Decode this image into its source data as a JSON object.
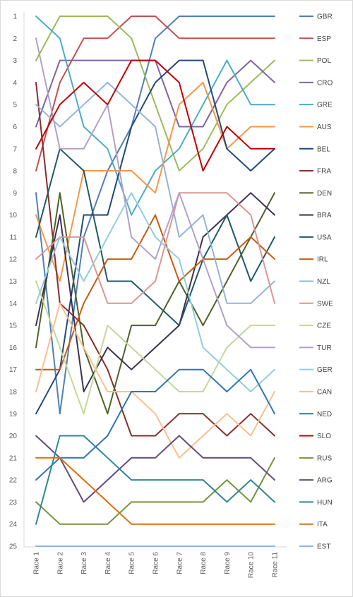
{
  "chart_data": {
    "type": "line",
    "title": "",
    "xlabel": "",
    "ylabel": "",
    "x": [
      "Race 1",
      "Race 2",
      "Race 3",
      "Race 4",
      "Race 5",
      "Race 6",
      "Race 7",
      "Race 8",
      "Race 9",
      "Race 10",
      "Race 11"
    ],
    "yticks": [
      1,
      2,
      3,
      4,
      5,
      6,
      7,
      8,
      9,
      10,
      11,
      12,
      13,
      14,
      15,
      16,
      17,
      18,
      19,
      20,
      21,
      22,
      23,
      24,
      25
    ],
    "ylim": [
      1,
      25
    ],
    "y_reversed": true,
    "grid": false,
    "legend_position": "right",
    "series": [
      {
        "name": "GBR",
        "color": "#4e7fb8",
        "values": [
          9,
          19,
          11,
          8,
          6,
          2,
          1,
          1,
          1,
          1,
          1
        ]
      },
      {
        "name": "ESP",
        "color": "#c0504d",
        "values": [
          8,
          4,
          2,
          2,
          1,
          1,
          2,
          2,
          2,
          2,
          2
        ]
      },
      {
        "name": "POL",
        "color": "#9bbb59",
        "values": [
          3,
          1,
          1,
          1,
          2,
          5,
          8,
          7,
          5,
          4,
          3
        ]
      },
      {
        "name": "CRO",
        "color": "#8064a2",
        "values": [
          6,
          3,
          3,
          3,
          3,
          3,
          6,
          6,
          4,
          3,
          4
        ]
      },
      {
        "name": "GRE",
        "color": "#4bacc6",
        "values": [
          1,
          2,
          6,
          7,
          10,
          8,
          7,
          5,
          3,
          5,
          5
        ]
      },
      {
        "name": "AUS",
        "color": "#f79646",
        "values": [
          10,
          13,
          8,
          8,
          8,
          9,
          5,
          4,
          7,
          6,
          6
        ]
      },
      {
        "name": "BEL",
        "color": "#1f497d",
        "values": [
          19,
          17,
          10,
          10,
          6,
          4,
          3,
          3,
          7,
          8,
          7
        ]
      },
      {
        "name": "FRA",
        "color": "#8b2c2c",
        "values": [
          4,
          14,
          15,
          17,
          20,
          20,
          19,
          19,
          20,
          19,
          20
        ]
      },
      {
        "name": "DEN",
        "color": "#4f6228",
        "values": [
          16,
          9,
          16,
          19,
          15,
          15,
          13,
          15,
          13,
          11,
          9
        ]
      },
      {
        "name": "BRA",
        "color": "#3e3151",
        "values": [
          15,
          10,
          18,
          16,
          17,
          16,
          15,
          11,
          10,
          9,
          10
        ]
      },
      {
        "name": "USA",
        "color": "#215968",
        "values": [
          11,
          7,
          8,
          13,
          13,
          14,
          15,
          12,
          10,
          13,
          11
        ]
      },
      {
        "name": "IRL",
        "color": "#c65911",
        "values": [
          17,
          17,
          14,
          12,
          12,
          10,
          13,
          12,
          12,
          11,
          12
        ]
      },
      {
        "name": "NZL",
        "color": "#95b3d7",
        "values": [
          5,
          6,
          5,
          4,
          5,
          6,
          11,
          10,
          14,
          14,
          13
        ]
      },
      {
        "name": "SWE",
        "color": "#da9694",
        "values": [
          12,
          11,
          11,
          14,
          14,
          13,
          9,
          9,
          9,
          10,
          14
        ]
      },
      {
        "name": "CZE",
        "color": "#c4d79b",
        "values": [
          13,
          16,
          19,
          15,
          16,
          17,
          18,
          18,
          16,
          15,
          15
        ]
      },
      {
        "name": "TUR",
        "color": "#b1a0c7",
        "values": [
          2,
          7,
          7,
          5,
          11,
          12,
          9,
          12,
          15,
          16,
          16
        ]
      },
      {
        "name": "GER",
        "color": "#92cddc",
        "values": [
          14,
          11,
          13,
          11,
          9,
          11,
          12,
          16,
          17,
          18,
          17
        ]
      },
      {
        "name": "CAN",
        "color": "#fabf8f",
        "values": [
          18,
          14,
          16,
          18,
          18,
          19,
          21,
          20,
          19,
          20,
          18
        ]
      },
      {
        "name": "NED",
        "color": "#2e75b6",
        "values": [
          22,
          21,
          21,
          20,
          18,
          18,
          17,
          17,
          18,
          17,
          19
        ]
      },
      {
        "name": "SLO",
        "color": "#c00000",
        "values": [
          7,
          5,
          4,
          5,
          3,
          3,
          4,
          8,
          6,
          7,
          7
        ]
      },
      {
        "name": "RUS",
        "color": "#77933c",
        "values": [
          23,
          24,
          24,
          24,
          23,
          23,
          23,
          23,
          22,
          23,
          21
        ]
      },
      {
        "name": "ARG",
        "color": "#604a7b",
        "values": [
          20,
          21,
          23,
          22,
          21,
          21,
          20,
          21,
          21,
          21,
          22
        ]
      },
      {
        "name": "HUN",
        "color": "#31859c",
        "values": [
          24,
          20,
          20,
          21,
          22,
          22,
          22,
          22,
          23,
          22,
          23
        ]
      },
      {
        "name": "ITA",
        "color": "#e46c0a",
        "values": [
          21,
          21,
          22,
          23,
          24,
          24,
          24,
          24,
          24,
          24,
          24
        ]
      },
      {
        "name": "EST",
        "color": "#8eb4e3",
        "values": [
          25,
          25,
          25,
          25,
          25,
          25,
          25,
          25,
          25,
          25,
          25
        ]
      }
    ]
  }
}
